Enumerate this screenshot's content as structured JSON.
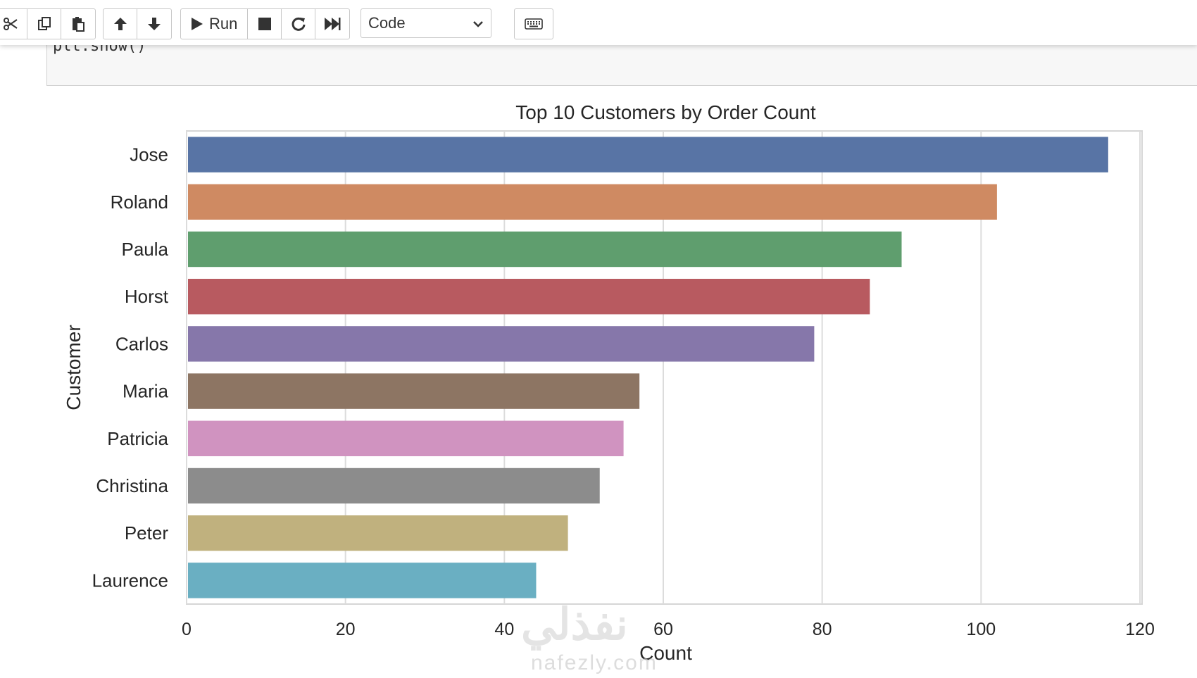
{
  "toolbar": {
    "buttons": [
      {
        "name": "cut-button",
        "icon": "scissors-icon"
      },
      {
        "name": "copy-button",
        "icon": "copy-icon"
      },
      {
        "name": "paste-button",
        "icon": "paste-icon"
      },
      {
        "name": "move-up-button",
        "icon": "arrow-up-icon"
      },
      {
        "name": "move-down-button",
        "icon": "arrow-down-icon"
      },
      {
        "name": "run-button",
        "icon": "play-icon",
        "label": "Run"
      },
      {
        "name": "interrupt-button",
        "icon": "stop-icon"
      },
      {
        "name": "restart-button",
        "icon": "restart-icon"
      },
      {
        "name": "run-all-button",
        "icon": "fast-forward-icon"
      },
      {
        "name": "command-palette-button",
        "icon": "keyboard-icon"
      }
    ],
    "run_label": "Run",
    "cell_type": "Code"
  },
  "cell": {
    "code": "plt.show()"
  },
  "watermark": {
    "text": "نفذلي",
    "sub": "nafezly.com"
  },
  "chart_data": {
    "type": "bar",
    "orientation": "horizontal",
    "title": "Top 10 Customers by Order Count",
    "xlabel": "Count",
    "ylabel": "Customer",
    "categories": [
      "Jose",
      "Roland",
      "Paula",
      "Horst",
      "Carlos",
      "Maria",
      "Patricia",
      "Christina",
      "Peter",
      "Laurence"
    ],
    "values": [
      116,
      102,
      90,
      86,
      79,
      57,
      55,
      52,
      48,
      44
    ],
    "colors": [
      "#5874a5",
      "#cf8a62",
      "#5f9e6e",
      "#b85a60",
      "#8677aa",
      "#8d7563",
      "#d093c0",
      "#8c8c8c",
      "#c0b17e",
      "#6aafc2"
    ],
    "xlim": [
      0,
      120
    ],
    "xticks": [
      0,
      20,
      40,
      60,
      80,
      100,
      120
    ],
    "grid": true
  }
}
